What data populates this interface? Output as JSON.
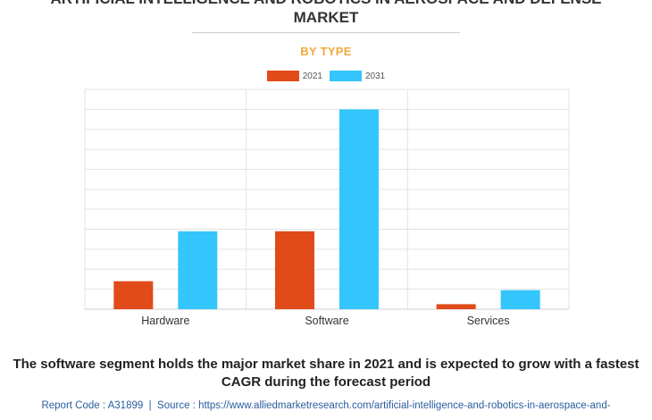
{
  "header": {
    "title_line1": "ARTIFICIAL INTELLIGENCE AND ROBOTICS IN AEROSPACE AND DEFENSE",
    "title_line2": "MARKET",
    "subtitle": "BY TYPE"
  },
  "chart_data": {
    "type": "bar",
    "title": "ARTIFICIAL INTELLIGENCE AND ROBOTICS IN AEROSPACE AND DEFENSE MARKET",
    "subtitle": "BY TYPE",
    "categories": [
      "Hardware",
      "Software",
      "Services"
    ],
    "series": [
      {
        "name": "2021",
        "color": "#e14a19",
        "values": [
          14,
          39,
          2.5
        ]
      },
      {
        "name": "2031",
        "color": "#33c5fb",
        "values": [
          39,
          100,
          9.5
        ]
      }
    ],
    "ylim": [
      0,
      110
    ],
    "grid": true,
    "legend_position": "top-center",
    "xlabel": "",
    "ylabel": ""
  },
  "caption": "The software segment holds the major market share in 2021 and is expected to grow with a fastest CAGR during the forecast period",
  "footer": {
    "report_code": "Report Code : A31899",
    "separator": "|",
    "source": "Source : https://www.alliedmarketresearch.com/artificial-intelligence-and-robotics-in-aerospace-and-"
  }
}
